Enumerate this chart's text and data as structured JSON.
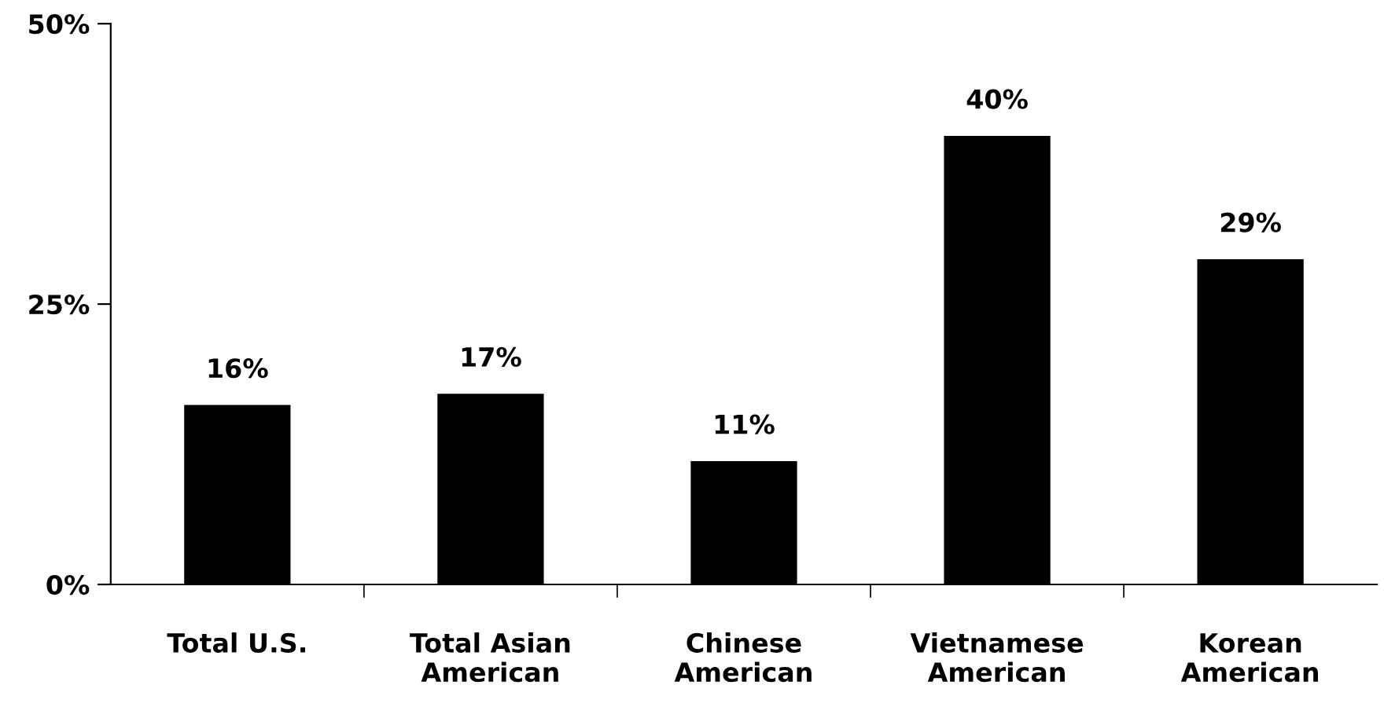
{
  "chart_data": {
    "type": "bar",
    "categories": [
      "Total U.S.",
      "Total Asian\nAmerican",
      "Chinese\nAmerican",
      "Vietnamese\nAmerican",
      "Korean\nAmerican"
    ],
    "values": [
      16,
      17,
      11,
      40,
      29
    ],
    "value_labels": [
      "16%",
      "17%",
      "11%",
      "40%",
      "29%"
    ],
    "color": "#000000",
    "ylim": [
      0,
      50
    ],
    "yticks": [
      {
        "value": 0,
        "label": "0%"
      },
      {
        "value": 25,
        "label": "25%"
      },
      {
        "value": 50,
        "label": "50%"
      }
    ],
    "grid": false
  }
}
